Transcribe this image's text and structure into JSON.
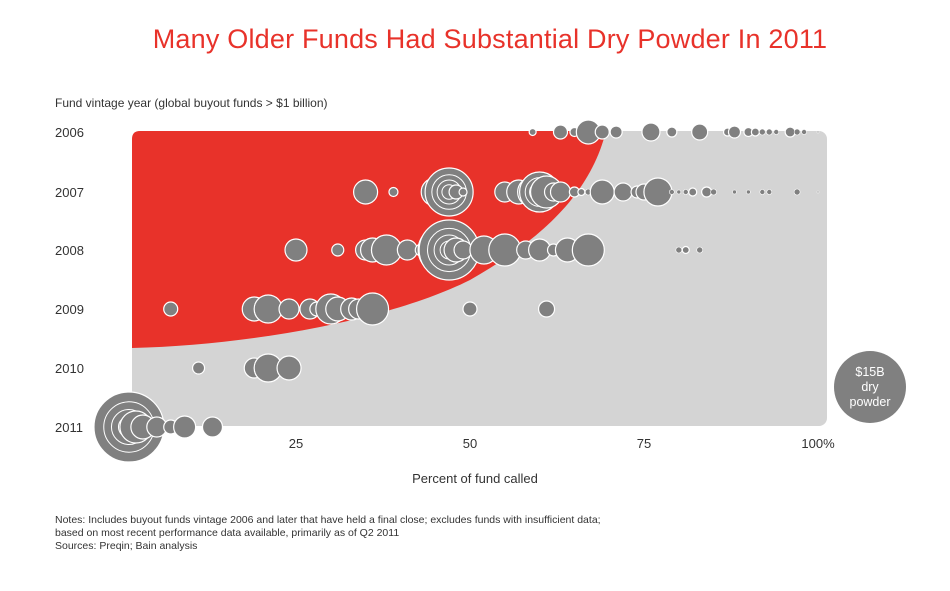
{
  "title": "Many Older Funds Had Substantial Dry Powder In 2011",
  "legend": {
    "line1": "$15B",
    "line2": "dry",
    "line3": "powder"
  },
  "notes": [
    "Notes: Includes buyout funds vintage 2006 and later that have held a final close; excludes funds with insufficient data;",
    "based on most recent performance data available, primarily as of Q2 2011",
    "Sources: Preqin; Bain analysis"
  ],
  "colors": {
    "highlight_area": "#e8322a",
    "background_area": "#d4d4d4",
    "bubble": "#808080",
    "bubble_stroke": "#ffffff"
  },
  "chart_data": {
    "type": "scatter",
    "title": "Many Older Funds Had Substantial Dry Powder In 2011",
    "ylabel": "Fund vintage year (global buyout funds > $1 billion)",
    "xlabel": "Percent of fund called",
    "x_ticks": [
      "25",
      "50",
      "75",
      "100%"
    ],
    "xlim": [
      0,
      100
    ],
    "categories": [
      "2006",
      "2007",
      "2008",
      "2009",
      "2010",
      "2011"
    ],
    "size_legend": "$15B dry powder",
    "series": [
      {
        "category": "2006",
        "points": [
          [
            59,
            3.5
          ],
          [
            63,
            7
          ],
          [
            65,
            4.5
          ],
          [
            67,
            12
          ],
          [
            69,
            7
          ],
          [
            71,
            6
          ],
          [
            76,
            9
          ],
          [
            79,
            5
          ],
          [
            83,
            8
          ],
          [
            87,
            4
          ],
          [
            88,
            6
          ],
          [
            90,
            4.5
          ],
          [
            91,
            4
          ],
          [
            92,
            3
          ],
          [
            93,
            3
          ],
          [
            94,
            2.5
          ],
          [
            96,
            5
          ],
          [
            97,
            3
          ],
          [
            98,
            2.5
          ],
          [
            100,
            1
          ]
        ]
      },
      {
        "category": "2007",
        "points": [
          [
            35,
            12
          ],
          [
            39,
            4.5
          ],
          [
            45,
            14
          ],
          [
            47,
            24
          ],
          [
            48,
            7
          ],
          [
            49,
            4
          ],
          [
            55,
            10
          ],
          [
            57,
            12
          ],
          [
            59,
            15
          ],
          [
            60,
            20
          ],
          [
            61,
            16
          ],
          [
            62,
            9
          ],
          [
            63,
            10
          ],
          [
            65,
            5
          ],
          [
            66,
            3.5
          ],
          [
            67,
            3
          ],
          [
            69,
            12
          ],
          [
            72,
            9
          ],
          [
            74,
            6
          ],
          [
            75,
            8
          ],
          [
            77,
            14
          ],
          [
            79,
            2.5
          ],
          [
            80,
            2
          ],
          [
            81,
            2.5
          ],
          [
            82,
            4
          ],
          [
            84,
            5
          ],
          [
            85,
            3
          ],
          [
            88,
            2
          ],
          [
            90,
            2
          ],
          [
            92,
            2.5
          ],
          [
            93,
            2.5
          ],
          [
            97,
            3
          ],
          [
            100,
            1
          ]
        ]
      },
      {
        "category": "2008",
        "points": [
          [
            25,
            11
          ],
          [
            31,
            6
          ],
          [
            35,
            10
          ],
          [
            36,
            12
          ],
          [
            37,
            8
          ],
          [
            38,
            15
          ],
          [
            41,
            10
          ],
          [
            43,
            6
          ],
          [
            46,
            24
          ],
          [
            47,
            30
          ],
          [
            48,
            12
          ],
          [
            49,
            9
          ],
          [
            52,
            14
          ],
          [
            55,
            16
          ],
          [
            58,
            9
          ],
          [
            60,
            11
          ],
          [
            62,
            6
          ],
          [
            64,
            12
          ],
          [
            67,
            16
          ],
          [
            80,
            3
          ],
          [
            81,
            3.5
          ],
          [
            83,
            3
          ]
        ]
      },
      {
        "category": "2009",
        "points": [
          [
            7,
            7
          ],
          [
            19,
            12
          ],
          [
            21,
            14
          ],
          [
            24,
            10
          ],
          [
            27,
            10
          ],
          [
            28,
            7
          ],
          [
            30,
            15
          ],
          [
            31,
            12
          ],
          [
            33,
            11
          ],
          [
            34,
            10
          ],
          [
            36,
            16
          ],
          [
            50,
            7
          ],
          [
            61,
            8
          ]
        ]
      },
      {
        "category": "2010",
        "points": [
          [
            11,
            6
          ],
          [
            19,
            10
          ],
          [
            21,
            14
          ],
          [
            24,
            12
          ]
        ]
      },
      {
        "category": "2011",
        "points": [
          [
            1,
            35
          ],
          [
            2,
            16
          ],
          [
            3,
            12
          ],
          [
            5,
            10
          ],
          [
            7,
            7
          ],
          [
            9,
            11
          ],
          [
            13,
            10
          ]
        ]
      }
    ]
  }
}
